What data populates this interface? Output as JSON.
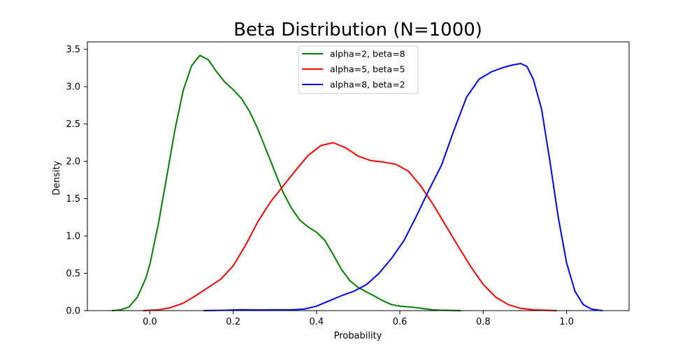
{
  "chart_data": {
    "type": "line",
    "title": "Beta Distribution (N=1000)",
    "xlabel": "Probability",
    "ylabel": "Density",
    "xlim": [
      -0.15,
      1.15
    ],
    "ylim": [
      0,
      3.6
    ],
    "xticks": [
      0.0,
      0.2,
      0.4,
      0.6,
      0.8,
      1.0
    ],
    "xtick_labels": [
      "0.0",
      "0.2",
      "0.4",
      "0.6",
      "0.8",
      "1.0"
    ],
    "yticks": [
      0.0,
      0.5,
      1.0,
      1.5,
      2.0,
      2.5,
      3.0,
      3.5
    ],
    "ytick_labels": [
      "0.0",
      "0.5",
      "1.0",
      "1.5",
      "2.0",
      "2.5",
      "3.0",
      "3.5"
    ],
    "grid": false,
    "legend_position": "top-center",
    "series": [
      {
        "name": "alpha=2, beta=8",
        "color": "#008000",
        "points": [
          [
            -0.09,
            0.0
          ],
          [
            -0.07,
            0.01
          ],
          [
            -0.05,
            0.05
          ],
          [
            -0.03,
            0.18
          ],
          [
            -0.01,
            0.43
          ],
          [
            0.0,
            0.62
          ],
          [
            0.02,
            1.15
          ],
          [
            0.04,
            1.78
          ],
          [
            0.06,
            2.42
          ],
          [
            0.08,
            2.95
          ],
          [
            0.1,
            3.28
          ],
          [
            0.12,
            3.42
          ],
          [
            0.14,
            3.36
          ],
          [
            0.16,
            3.2
          ],
          [
            0.18,
            3.06
          ],
          [
            0.2,
            2.96
          ],
          [
            0.22,
            2.84
          ],
          [
            0.24,
            2.66
          ],
          [
            0.26,
            2.42
          ],
          [
            0.28,
            2.14
          ],
          [
            0.3,
            1.86
          ],
          [
            0.32,
            1.58
          ],
          [
            0.34,
            1.37
          ],
          [
            0.36,
            1.21
          ],
          [
            0.38,
            1.12
          ],
          [
            0.4,
            1.05
          ],
          [
            0.42,
            0.94
          ],
          [
            0.44,
            0.75
          ],
          [
            0.46,
            0.55
          ],
          [
            0.48,
            0.4
          ],
          [
            0.5,
            0.31
          ],
          [
            0.52,
            0.25
          ],
          [
            0.54,
            0.19
          ],
          [
            0.56,
            0.13
          ],
          [
            0.58,
            0.08
          ],
          [
            0.6,
            0.06
          ],
          [
            0.62,
            0.05
          ],
          [
            0.64,
            0.04
          ],
          [
            0.66,
            0.025
          ],
          [
            0.68,
            0.01
          ],
          [
            0.7,
            0.005
          ],
          [
            0.745,
            0.0
          ]
        ]
      },
      {
        "name": "alpha=5, beta=5",
        "color": "#ff0000",
        "points": [
          [
            -0.015,
            0.0
          ],
          [
            0.02,
            0.01
          ],
          [
            0.05,
            0.04
          ],
          [
            0.08,
            0.1
          ],
          [
            0.11,
            0.2
          ],
          [
            0.14,
            0.31
          ],
          [
            0.17,
            0.42
          ],
          [
            0.2,
            0.6
          ],
          [
            0.23,
            0.88
          ],
          [
            0.26,
            1.2
          ],
          [
            0.29,
            1.46
          ],
          [
            0.32,
            1.67
          ],
          [
            0.35,
            1.88
          ],
          [
            0.38,
            2.08
          ],
          [
            0.41,
            2.21
          ],
          [
            0.44,
            2.25
          ],
          [
            0.47,
            2.18
          ],
          [
            0.5,
            2.07
          ],
          [
            0.53,
            2.01
          ],
          [
            0.56,
            1.99
          ],
          [
            0.59,
            1.96
          ],
          [
            0.62,
            1.87
          ],
          [
            0.65,
            1.67
          ],
          [
            0.68,
            1.42
          ],
          [
            0.71,
            1.14
          ],
          [
            0.74,
            0.86
          ],
          [
            0.77,
            0.59
          ],
          [
            0.8,
            0.35
          ],
          [
            0.83,
            0.18
          ],
          [
            0.86,
            0.08
          ],
          [
            0.89,
            0.03
          ],
          [
            0.92,
            0.01
          ],
          [
            0.975,
            0.0
          ]
        ]
      },
      {
        "name": "alpha=8, beta=2",
        "color": "#0000ff",
        "points": [
          [
            0.13,
            0.0
          ],
          [
            0.18,
            0.005
          ],
          [
            0.22,
            0.012
          ],
          [
            0.26,
            0.008
          ],
          [
            0.3,
            0.01
          ],
          [
            0.34,
            0.01
          ],
          [
            0.37,
            0.02
          ],
          [
            0.4,
            0.06
          ],
          [
            0.43,
            0.13
          ],
          [
            0.46,
            0.2
          ],
          [
            0.49,
            0.26
          ],
          [
            0.52,
            0.35
          ],
          [
            0.55,
            0.5
          ],
          [
            0.58,
            0.7
          ],
          [
            0.61,
            0.94
          ],
          [
            0.64,
            1.27
          ],
          [
            0.67,
            1.62
          ],
          [
            0.7,
            1.95
          ],
          [
            0.73,
            2.42
          ],
          [
            0.76,
            2.86
          ],
          [
            0.79,
            3.1
          ],
          [
            0.82,
            3.2
          ],
          [
            0.85,
            3.26
          ],
          [
            0.87,
            3.29
          ],
          [
            0.89,
            3.31
          ],
          [
            0.905,
            3.27
          ],
          [
            0.92,
            3.1
          ],
          [
            0.94,
            2.7
          ],
          [
            0.96,
            2.0
          ],
          [
            0.98,
            1.25
          ],
          [
            1.0,
            0.64
          ],
          [
            1.02,
            0.26
          ],
          [
            1.04,
            0.08
          ],
          [
            1.06,
            0.02
          ],
          [
            1.085,
            0.0
          ]
        ]
      }
    ]
  }
}
